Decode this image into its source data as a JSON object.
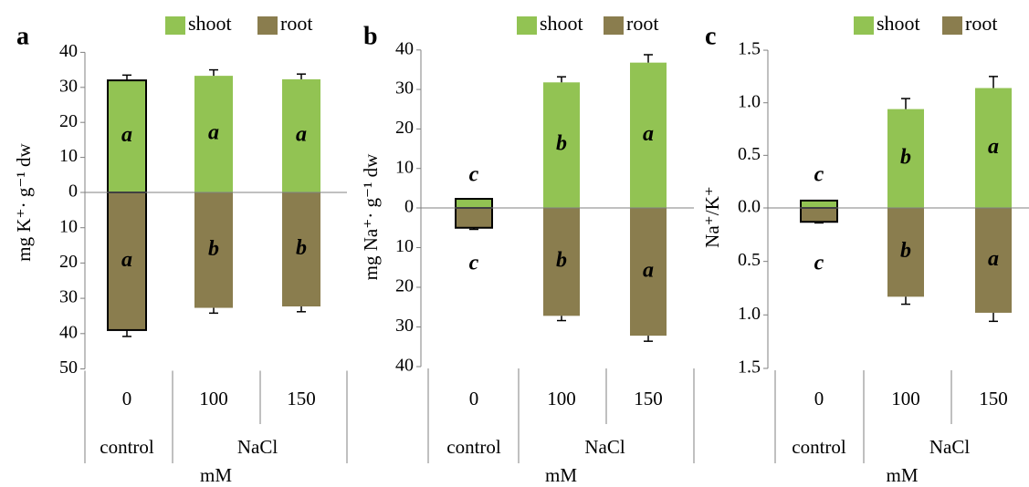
{
  "legend_labels": {
    "shoot": "shoot",
    "root": "root"
  },
  "colors": {
    "shoot": "#92c353",
    "root": "#8a7d4e",
    "axis": "#808080"
  },
  "chart_data": [
    {
      "type": "bar",
      "panel": "a",
      "categories": [
        "0",
        "100",
        "150"
      ],
      "groups": [
        {
          "label": "control",
          "span": 1
        },
        {
          "label": "NaCl",
          "span": 2
        }
      ],
      "unit_label": "mM",
      "ylabel": "mg K⁺· g⁻¹ dw",
      "y_up_ticks": [
        "40",
        "30",
        "20",
        "10",
        "0"
      ],
      "y_down_ticks": [
        "10",
        "20",
        "30",
        "40",
        "50"
      ],
      "ylim_up": 40,
      "ylim_down": 50,
      "legend_position": "top-right",
      "series": [
        {
          "name": "shoot",
          "direction": "up",
          "values": [
            32,
            33.3,
            32.3
          ],
          "errors": [
            1.5,
            1.7,
            1.5
          ],
          "letters": [
            "a",
            "a",
            "a"
          ],
          "outlined": [
            true,
            false,
            false
          ]
        },
        {
          "name": "root",
          "direction": "down",
          "values": [
            39,
            32.7,
            32.3
          ],
          "errors": [
            1.8,
            1.5,
            1.5
          ],
          "letters": [
            "a",
            "b",
            "b"
          ],
          "outlined": [
            true,
            false,
            false
          ]
        }
      ]
    },
    {
      "type": "bar",
      "panel": "b",
      "categories": [
        "0",
        "100",
        "150"
      ],
      "groups": [
        {
          "label": "control",
          "span": 1
        },
        {
          "label": "NaCl",
          "span": 2
        }
      ],
      "unit_label": "mM",
      "ylabel": "mg Na⁺· g⁻¹ dw",
      "y_up_ticks": [
        "40",
        "30",
        "20",
        "10",
        "0"
      ],
      "y_down_ticks": [
        "10",
        "20",
        "30",
        "40"
      ],
      "ylim_up": 40,
      "ylim_down": 40,
      "legend_position": "top-right",
      "series": [
        {
          "name": "shoot",
          "direction": "up",
          "values": [
            2.3,
            31.8,
            36.8
          ],
          "errors": [
            0,
            1.4,
            2.0
          ],
          "letters": [
            "c",
            "b",
            "a"
          ],
          "outlined": [
            true,
            false,
            false
          ]
        },
        {
          "name": "root",
          "direction": "down",
          "values": [
            5.0,
            27.2,
            32.2
          ],
          "errors": [
            0.4,
            1.2,
            1.4
          ],
          "letters": [
            "c",
            "b",
            "a"
          ],
          "outlined": [
            true,
            false,
            false
          ]
        }
      ]
    },
    {
      "type": "bar",
      "panel": "c",
      "categories": [
        "0",
        "100",
        "150"
      ],
      "groups": [
        {
          "label": "control",
          "span": 1
        },
        {
          "label": "NaCl",
          "span": 2
        }
      ],
      "unit_label": "mM",
      "ylabel": "Na⁺/K⁺",
      "y_up_ticks": [
        "1.5",
        "1.0",
        "0.5",
        "0.0"
      ],
      "y_down_ticks": [
        "0.5",
        "1.0",
        "1.5"
      ],
      "ylim_up": 1.5,
      "ylim_down": 1.5,
      "legend_position": "top-right",
      "series": [
        {
          "name": "shoot",
          "direction": "up",
          "values": [
            0.07,
            0.94,
            1.14
          ],
          "errors": [
            0,
            0.1,
            0.11
          ],
          "letters": [
            "c",
            "b",
            "a"
          ],
          "outlined": [
            true,
            false,
            false
          ]
        },
        {
          "name": "root",
          "direction": "down",
          "values": [
            0.13,
            0.83,
            0.98
          ],
          "errors": [
            0.01,
            0.07,
            0.08
          ],
          "letters": [
            "c",
            "b",
            "a"
          ],
          "outlined": [
            true,
            false,
            false
          ]
        }
      ]
    }
  ]
}
